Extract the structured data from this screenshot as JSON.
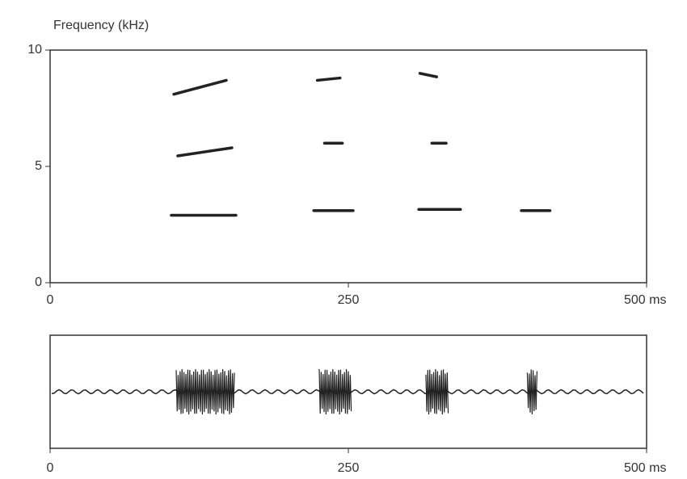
{
  "chart_data": [
    {
      "type": "spectrogram",
      "title": "Frequency (kHz)",
      "xlim": [
        0,
        500
      ],
      "xticks": [
        0,
        250,
        {
          "value": 500,
          "label": "500 ms"
        }
      ],
      "ylim": [
        0,
        10
      ],
      "yticks": [
        0,
        5,
        10
      ],
      "color": "#222",
      "traces": [
        {
          "x": [
            101.6,
            155.8
          ],
          "y": [
            2.9,
            2.9
          ]
        },
        {
          "x": [
            107,
            152.4
          ],
          "y": [
            5.45,
            5.8
          ]
        },
        {
          "x": [
            103.7,
            147.7
          ],
          "y": [
            8.1,
            8.7
          ]
        },
        {
          "x": [
            221,
            254
          ],
          "y": [
            3.1,
            3.1
          ]
        },
        {
          "x": [
            230,
            245
          ],
          "y": [
            6.0,
            6.0
          ]
        },
        {
          "x": [
            224,
            243
          ],
          "y": [
            8.7,
            8.8
          ]
        },
        {
          "x": [
            309,
            344
          ],
          "y": [
            3.15,
            3.15
          ]
        },
        {
          "x": [
            320,
            332
          ],
          "y": [
            6.0,
            6.0
          ]
        },
        {
          "x": [
            310,
            324
          ],
          "y": [
            9.0,
            8.85
          ]
        },
        {
          "x": [
            395,
            419
          ],
          "y": [
            3.1,
            3.1
          ]
        }
      ]
    },
    {
      "type": "waveform",
      "xlim": [
        0,
        500
      ],
      "xticks": [
        0,
        250,
        {
          "value": 500,
          "label": "500 ms"
        }
      ],
      "color": "#222",
      "bursts": [
        {
          "x": [
            105.7,
            154.5
          ]
        },
        {
          "x": [
            225.6,
            252.7
          ]
        },
        {
          "x": [
            315,
            334
          ]
        },
        {
          "x": [
            400,
            408.5
          ]
        }
      ]
    }
  ]
}
